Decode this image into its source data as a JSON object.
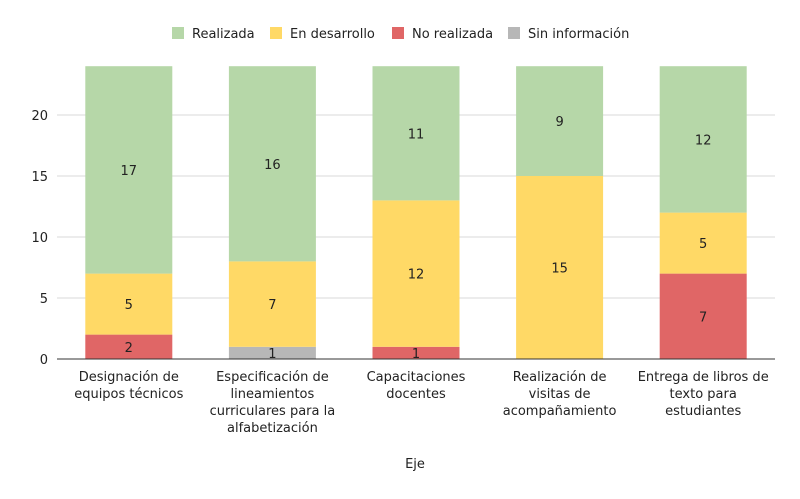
{
  "chart_data": {
    "type": "bar",
    "stacked": true,
    "title": "",
    "xlabel": "Eje",
    "ylabel": "",
    "ylim": [
      0,
      24
    ],
    "yticks": [
      0,
      5,
      10,
      15,
      20
    ],
    "grid": true,
    "legend_position": "top",
    "categories": [
      [
        "Designación de",
        "equipos técnicos"
      ],
      [
        "Especificación de",
        "lineamientos",
        "curriculares para la",
        "alfabetización"
      ],
      [
        "Capacitaciones",
        "docentes"
      ],
      [
        "Realización de",
        "visitas de",
        "acompañamiento"
      ],
      [
        "Entrega de libros de",
        "texto para",
        "estudiantes"
      ]
    ],
    "series": [
      {
        "name": "Sin información",
        "color": "#b7b7b7",
        "values": [
          0,
          1,
          0,
          0,
          0
        ]
      },
      {
        "name": "No realizada",
        "color": "#e06666",
        "values": [
          2,
          0,
          1,
          0,
          7
        ]
      },
      {
        "name": "En desarrollo",
        "color": "#ffd966",
        "values": [
          5,
          7,
          12,
          15,
          5
        ]
      },
      {
        "name": "Realizada",
        "color": "#b6d7a8",
        "values": [
          17,
          16,
          11,
          9,
          12
        ]
      }
    ],
    "legend_order": [
      "Realizada",
      "En desarrollo",
      "No realizada",
      "Sin información"
    ]
  }
}
